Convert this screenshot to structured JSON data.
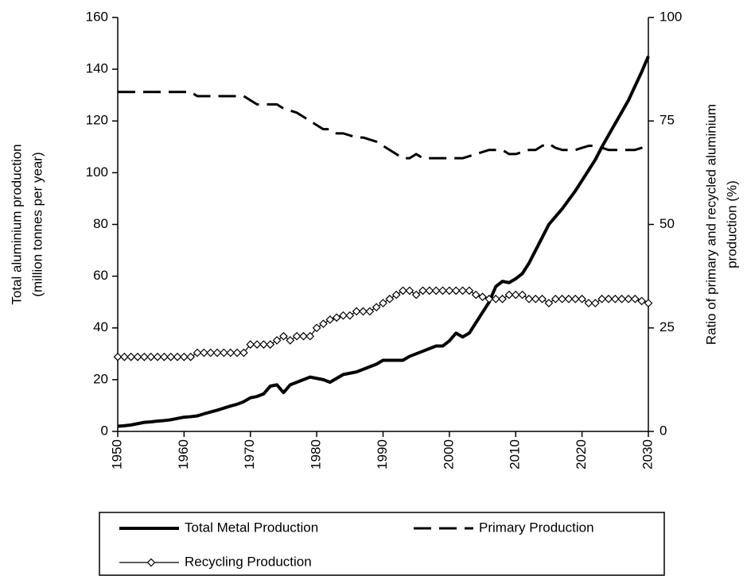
{
  "chart_data": {
    "type": "line",
    "y_label": [
      "Total aluminium production",
      "(million tonnes per year)"
    ],
    "y2_label": [
      "Ratio of primary and recycled aluminium",
      "production (%)"
    ],
    "x": [
      1950,
      1951,
      1952,
      1953,
      1954,
      1955,
      1956,
      1957,
      1958,
      1959,
      1960,
      1961,
      1962,
      1963,
      1964,
      1965,
      1966,
      1967,
      1968,
      1969,
      1970,
      1971,
      1972,
      1973,
      1974,
      1975,
      1976,
      1977,
      1978,
      1979,
      1980,
      1981,
      1982,
      1983,
      1984,
      1985,
      1986,
      1987,
      1988,
      1989,
      1990,
      1991,
      1992,
      1993,
      1994,
      1995,
      1996,
      1997,
      1998,
      1999,
      2000,
      2001,
      2002,
      2003,
      2004,
      2005,
      2006,
      2007,
      2008,
      2009,
      2010,
      2011,
      2012,
      2013,
      2014,
      2015,
      2016,
      2017,
      2018,
      2019,
      2020,
      2021,
      2022,
      2023,
      2024,
      2025,
      2026,
      2027,
      2028,
      2029,
      2030
    ],
    "xlim": [
      1950,
      2030
    ],
    "xticks": [
      1950,
      1960,
      1970,
      1980,
      1990,
      2000,
      2010,
      2020,
      2030
    ],
    "ylim": [
      0,
      160
    ],
    "yticks": [
      0,
      20,
      40,
      60,
      80,
      100,
      120,
      140,
      160
    ],
    "y2lim": [
      0,
      100
    ],
    "y2ticks": [
      0,
      25,
      50,
      75,
      100
    ],
    "legend": "bottom",
    "series": [
      {
        "name": "Total Metal Production",
        "color": "#000000",
        "line_style": "solid",
        "values": [
          2,
          2.2,
          2.5,
          3,
          3.5,
          3.7,
          4,
          4.2,
          4.5,
          5,
          5.5,
          5.7,
          6,
          6.8,
          7.5,
          8.2,
          9,
          9.8,
          10.5,
          11.5,
          13,
          13.5,
          14.5,
          17.5,
          18,
          15,
          18,
          19,
          20,
          21,
          20.5,
          20,
          19,
          20.5,
          22,
          22.5,
          23,
          24,
          25,
          26,
          27.5,
          27.5,
          27.5,
          27.5,
          29,
          30,
          31,
          32,
          33,
          33,
          35,
          38,
          36.5,
          38,
          42,
          46,
          50,
          56,
          58,
          57.5,
          59,
          61,
          65,
          70,
          75,
          80,
          83,
          86,
          89.5,
          93,
          97,
          101,
          105,
          110,
          114.5,
          119,
          123.5,
          128,
          133.5,
          139,
          145
        ]
      },
      {
        "name": "Primary Production",
        "color": "#000000",
        "line_style": "dashed",
        "axis": "y2",
        "values": [
          82,
          82,
          82,
          82,
          82,
          82,
          82,
          82,
          82,
          82,
          82,
          82,
          81,
          81,
          81,
          81,
          81,
          81,
          81,
          81,
          80,
          79,
          79,
          79,
          79,
          78,
          77.5,
          77,
          76,
          75,
          74,
          73,
          73,
          72,
          72,
          71.5,
          71,
          71,
          70.5,
          70,
          69,
          68,
          67,
          66,
          66,
          67,
          66,
          66,
          66,
          66,
          66,
          66,
          66,
          66.5,
          67,
          67.5,
          68,
          68,
          68,
          67,
          67,
          67.5,
          68,
          68,
          69,
          69.5,
          68.5,
          68,
          68,
          68,
          68.5,
          69,
          69,
          68.5,
          68,
          68,
          68,
          68,
          68,
          68.5,
          69
        ]
      },
      {
        "name": "Recycling Production",
        "color": "#000000",
        "line_style": "solid",
        "marker": "diamond",
        "axis": "y2",
        "values": [
          18,
          18,
          18,
          18,
          18,
          18,
          18,
          18,
          18,
          18,
          18,
          18,
          19,
          19,
          19,
          19,
          19,
          19,
          19,
          19,
          21,
          21,
          21,
          21,
          22,
          23,
          22,
          23,
          23,
          23,
          25,
          26,
          27,
          27.5,
          28,
          28,
          29,
          29,
          29,
          30,
          31,
          32,
          33,
          34,
          34,
          33,
          34,
          34,
          34,
          34,
          34,
          34,
          34,
          34,
          33,
          32.5,
          32,
          32,
          32,
          33,
          33,
          33,
          32,
          32,
          32,
          31,
          32,
          32,
          32,
          32,
          32,
          31,
          31,
          32,
          32,
          32,
          32,
          32,
          32,
          31.5,
          31
        ]
      }
    ]
  }
}
